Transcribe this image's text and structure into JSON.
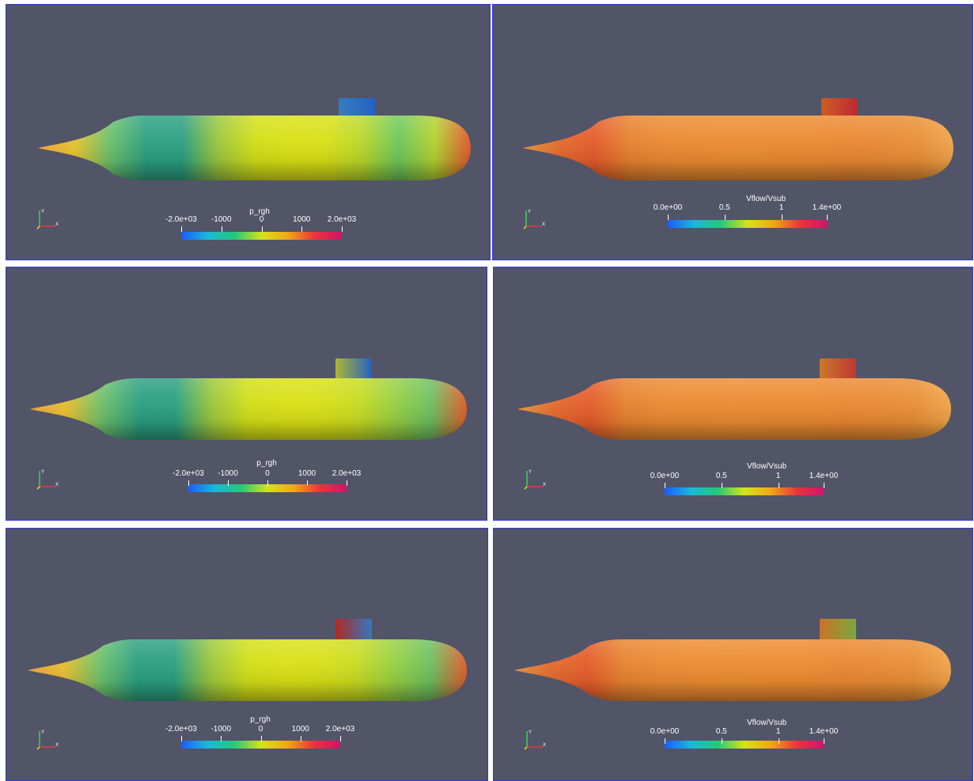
{
  "colormaps": {
    "pressure": [
      "#1c5cff",
      "#19b9d9",
      "#25c878",
      "#d6e31a",
      "#f2a51a",
      "#e8343a",
      "#d0156c"
    ],
    "velocity": [
      "#1c5cff",
      "#19b9d9",
      "#25c878",
      "#d6e31a",
      "#f2a51a",
      "#e8343a",
      "#d0156c"
    ]
  },
  "panels": [
    {
      "id": "r1-pressure",
      "field": "pressure",
      "colorbar": {
        "title": "p_rgh",
        "ticks": [
          "-2.0e+03",
          "-1000",
          "0",
          "1000",
          "2.0e+03"
        ]
      },
      "shading": {
        "stops": [
          "#f2a23a",
          "#e9c42d",
          "#6cc06a",
          "#2b9f80",
          "#2b9f80",
          "#9cc73b",
          "#d2df17",
          "#dbe014",
          "#d9e016",
          "#b8d82a",
          "#6cc85a",
          "#b3d22e",
          "#e0562a"
        ]
      },
      "sail_fill": [
        "#3d8ed8",
        "#2a6fe0"
      ]
    },
    {
      "id": "r1-velocity",
      "field": "velocity",
      "colorbar": {
        "title": "Vflow/Vsub",
        "ticks": [
          "0.0e+00",
          "0.5",
          "1",
          "1.4e+00"
        ]
      },
      "shading": {
        "stops": [
          "#e8953a",
          "#e46a2c",
          "#e45b2a",
          "#e7822e",
          "#eb8a30",
          "#ec8b30",
          "#ec8c31",
          "#ec8b30",
          "#ec8b30",
          "#eb8830",
          "#e98a32",
          "#e98f34",
          "#f0a44a"
        ]
      },
      "sail_fill": [
        "#e86a2a",
        "#d8303a"
      ]
    },
    {
      "id": "r2-pressure",
      "field": "pressure",
      "colorbar": {
        "title": "p_rgh",
        "ticks": [
          "-2.0e+03",
          "-1000",
          "0",
          "1000",
          "2.0e+03"
        ]
      },
      "shading": {
        "stops": [
          "#f2a23a",
          "#e6c02e",
          "#6cc06a",
          "#2b9f80",
          "#2b9f80",
          "#9cc73b",
          "#d2df17",
          "#dbe014",
          "#d9e016",
          "#c8dc20",
          "#98d040",
          "#6cc060",
          "#e05a2a"
        ]
      },
      "sail_fill": [
        "#c8d03a",
        "#2a6fe0"
      ]
    },
    {
      "id": "r2-velocity",
      "field": "velocity",
      "colorbar": {
        "title": "Vflow/Vsub",
        "ticks": [
          "0.0e+00",
          "0.5",
          "1",
          "1.4e+00"
        ]
      },
      "shading": {
        "stops": [
          "#e8953a",
          "#e46a2c",
          "#e45b2a",
          "#e7822e",
          "#eb8a30",
          "#ec8b30",
          "#ec8c31",
          "#ec8b30",
          "#ec8b30",
          "#eb8830",
          "#e98a32",
          "#e98f34",
          "#f0a44a"
        ]
      },
      "sail_fill": [
        "#e88a30",
        "#d8403a"
      ]
    },
    {
      "id": "r3-pressure",
      "field": "pressure",
      "colorbar": {
        "title": "p_rgh",
        "ticks": [
          "-2.0e+03",
          "-1000",
          "0",
          "1000",
          "2.0e+03"
        ]
      },
      "shading": {
        "stops": [
          "#f2a23a",
          "#e6c02e",
          "#6cc06a",
          "#2b9f80",
          "#2b9f80",
          "#9cc73b",
          "#d2df17",
          "#dbe014",
          "#d9e016",
          "#c8dc20",
          "#98d040",
          "#6cc060",
          "#e05a2a"
        ]
      },
      "sail_fill": [
        "#c8302a",
        "#3a8ad8"
      ]
    },
    {
      "id": "r3-velocity",
      "field": "velocity",
      "colorbar": {
        "title": "Vflow/Vsub",
        "ticks": [
          "0.0e+00",
          "0.5",
          "1",
          "1.4e+00"
        ]
      },
      "shading": {
        "stops": [
          "#e8953a",
          "#e46a2c",
          "#e45b2a",
          "#e7822e",
          "#eb8a30",
          "#ec8b30",
          "#ec8c31",
          "#ec8b30",
          "#ec8b30",
          "#eb8830",
          "#e98a32",
          "#e98f34",
          "#f0a44a"
        ]
      },
      "sail_fill": [
        "#e8822e",
        "#8ac048"
      ]
    }
  ]
}
